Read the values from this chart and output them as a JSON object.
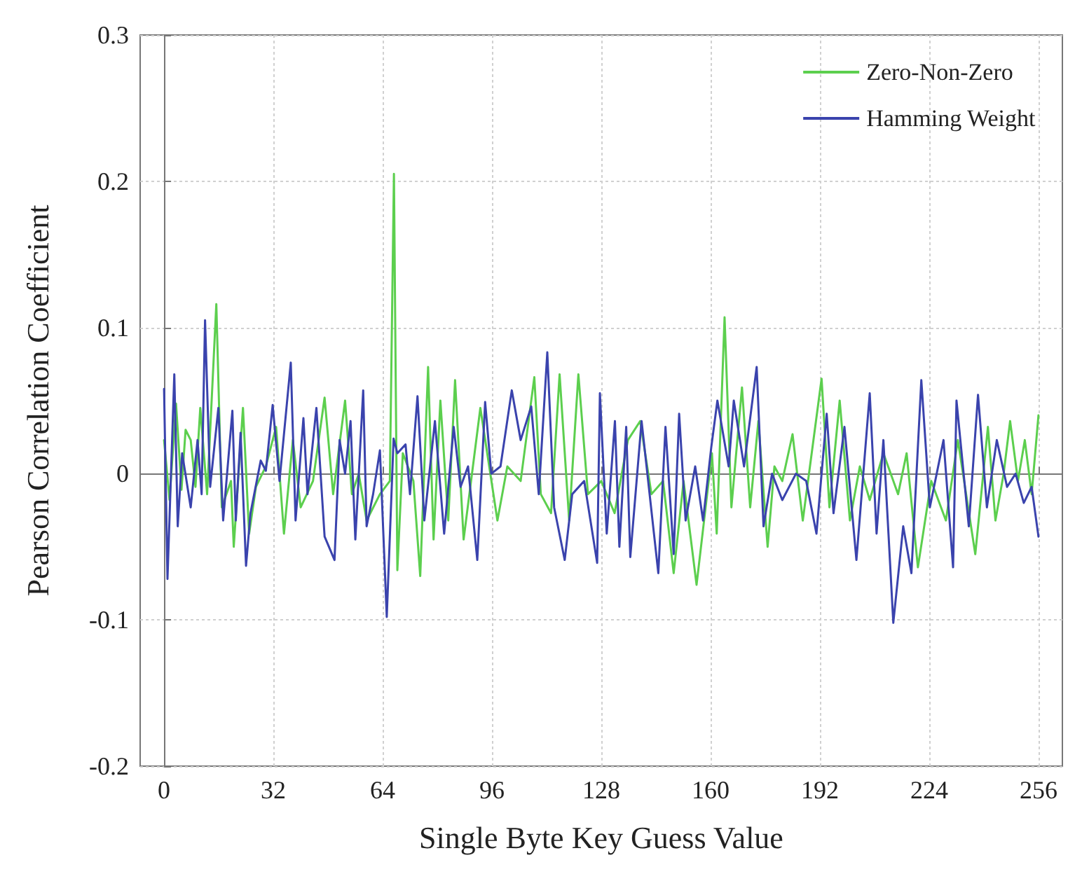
{
  "chart_data": {
    "type": "line",
    "xlabel": "Single Byte Key Guess Value",
    "ylabel": "Pearson Correlation Coefficient",
    "xlim": [
      -7,
      263
    ],
    "ylim": [
      -0.2,
      0.3
    ],
    "xticks": [
      0,
      32,
      64,
      96,
      128,
      160,
      192,
      224,
      256
    ],
    "yticks": [
      -0.2,
      -0.1,
      0,
      0.1,
      0.2,
      0.3
    ],
    "grid": true,
    "legend": "top right",
    "marker": "none",
    "line_style": "solid",
    "series": [
      {
        "name": "Zero-Non-Zero",
        "color": "#5ccf4e",
        "x": [
          0,
          1.6,
          3.5,
          5.1,
          6.3,
          7.8,
          9.2,
          10.6,
          12.6,
          15.3,
          16.9,
          19.6,
          20.4,
          23.1,
          24.9,
          26.9,
          29.8,
          32.8,
          35.1,
          37.7,
          40,
          43.6,
          47,
          49.5,
          53,
          55,
          57,
          59.3,
          63.2,
          66.1,
          67.3,
          68.3,
          69.9,
          73,
          75,
          77.3,
          78.9,
          80.9,
          83.2,
          85.2,
          87.7,
          92.6,
          97.6,
          100.5,
          104.4,
          108.4,
          110.3,
          113.3,
          115.8,
          118.6,
          121.3,
          124.1,
          128,
          131.9,
          135.8,
          139.4,
          142.7,
          146.1,
          149.2,
          152.1,
          155.9,
          160.4,
          161.8,
          164.1,
          166.1,
          169.2,
          171.6,
          174,
          176.7,
          178.7,
          181,
          184,
          187,
          192.5,
          194.8,
          197.8,
          200.8,
          203.7,
          206.6,
          210.6,
          214.9,
          217.4,
          220.7,
          224.6,
          228.9,
          232.4,
          237.5,
          241.2,
          243.4,
          245.8,
          247.7,
          250,
          252,
          254,
          256
        ],
        "values": [
          0.023,
          -0.018,
          0.048,
          -0.011,
          0.03,
          0.023,
          -0.009,
          0.045,
          -0.014,
          0.116,
          -0.023,
          -0.005,
          -0.05,
          0.045,
          -0.041,
          -0.009,
          0.005,
          0.032,
          -0.041,
          0.023,
          -0.023,
          -0.005,
          0.052,
          -0.014,
          0.05,
          -0.014,
          0,
          -0.032,
          -0.014,
          -0.005,
          0.205,
          -0.066,
          0.014,
          -0.005,
          -0.07,
          0.073,
          -0.045,
          0.05,
          -0.032,
          0.064,
          -0.045,
          0.045,
          -0.032,
          0.005,
          -0.005,
          0.066,
          -0.014,
          -0.027,
          0.068,
          -0.032,
          0.068,
          -0.014,
          -0.005,
          -0.027,
          0.023,
          0.036,
          -0.014,
          -0.005,
          -0.068,
          -0.005,
          -0.076,
          0.014,
          -0.041,
          0.107,
          -0.023,
          0.059,
          -0.023,
          0.036,
          -0.05,
          0.005,
          -0.005,
          0.027,
          -0.032,
          0.065,
          -0.023,
          0.05,
          -0.032,
          0.005,
          -0.018,
          0.014,
          -0.014,
          0.014,
          -0.064,
          -0.005,
          -0.032,
          0.023,
          -0.055,
          0.032,
          -0.032,
          0,
          0.036,
          -0.005,
          0.023,
          -0.014,
          0.04
        ]
      },
      {
        "name": "Hamming Weight",
        "color": "#3a43ad",
        "x": [
          0,
          1,
          3,
          4,
          5.3,
          7.8,
          9.8,
          11,
          12,
          13.5,
          15.9,
          17.3,
          20,
          21,
          22.4,
          24,
          25.3,
          28.3,
          29.8,
          31.8,
          33.8,
          37.1,
          38.5,
          40.8,
          42,
          44.6,
          47,
          49.9,
          51.4,
          53,
          54.6,
          56,
          58.3,
          59.3,
          61.2,
          63.2,
          65.2,
          67.2,
          68.3,
          70.7,
          72,
          74.2,
          76.2,
          79.3,
          82,
          84.8,
          86.8,
          89,
          91.7,
          94,
          95.8,
          98.5,
          101.8,
          104.4,
          107.5,
          109.7,
          112.2,
          114.2,
          117.3,
          119.5,
          123,
          126.8,
          127.6,
          129.6,
          132,
          133.3,
          135.3,
          136.5,
          139.8,
          144.7,
          146.8,
          149.2,
          150.8,
          152.7,
          155.5,
          157.8,
          160.2,
          162,
          165.3,
          166.8,
          169.8,
          173.5,
          175.5,
          178,
          181,
          185,
          188,
          191,
          194,
          196,
          199.2,
          202.7,
          206.6,
          208.6,
          210.6,
          213.5,
          216.4,
          218.8,
          221.7,
          224.2,
          228.2,
          231,
          232,
          235.6,
          238.3,
          240.9,
          243.8,
          246.8,
          249.3,
          251.7,
          254,
          256
        ],
        "values": [
          0.058,
          -0.072,
          0.068,
          -0.036,
          0.014,
          -0.023,
          0.023,
          -0.014,
          0.105,
          -0.009,
          0.045,
          -0.032,
          0.043,
          -0.032,
          0.028,
          -0.063,
          -0.027,
          0.009,
          0.002,
          0.047,
          -0.005,
          0.076,
          -0.032,
          0.038,
          -0.014,
          0.045,
          -0.043,
          -0.059,
          0.023,
          0,
          0.036,
          -0.045,
          0.057,
          -0.036,
          -0.014,
          0.016,
          -0.098,
          0.024,
          0.014,
          0.02,
          -0.014,
          0.053,
          -0.032,
          0.036,
          -0.041,
          0.032,
          -0.009,
          0.005,
          -0.059,
          0.049,
          0,
          0.005,
          0.057,
          0.023,
          0.046,
          -0.014,
          0.083,
          -0.023,
          -0.059,
          -0.014,
          -0.005,
          -0.061,
          0.055,
          -0.041,
          0.036,
          -0.05,
          0.032,
          -0.057,
          0.036,
          -0.068,
          0.032,
          -0.055,
          0.041,
          -0.032,
          0.005,
          -0.032,
          0.018,
          0.05,
          0.005,
          0.05,
          0.005,
          0.073,
          -0.036,
          0,
          -0.018,
          0,
          -0.005,
          -0.041,
          0.041,
          -0.027,
          0.032,
          -0.059,
          0.055,
          -0.041,
          0.023,
          -0.102,
          -0.036,
          -0.068,
          0.064,
          -0.023,
          0.023,
          -0.064,
          0.05,
          -0.036,
          0.054,
          -0.023,
          0.023,
          -0.009,
          0,
          -0.02,
          -0.009,
          -0.043
        ]
      }
    ]
  }
}
